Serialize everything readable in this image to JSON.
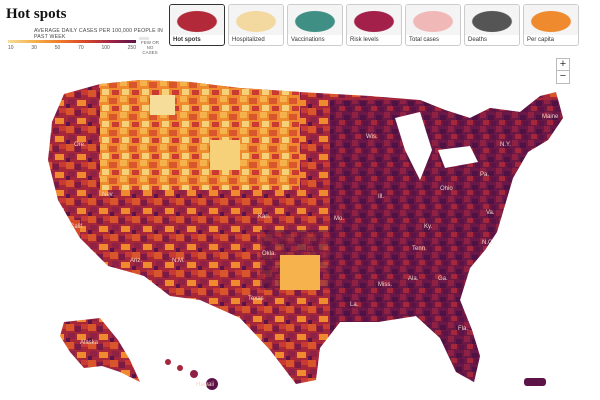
{
  "header": {
    "title": "Hot spots",
    "legend_caption": "Average daily cases per 100,000 people in past week",
    "legend_ticks": [
      "10",
      "30",
      "50",
      "70",
      "100",
      "250"
    ],
    "legend_few": "Few or no cases",
    "legend_colors": [
      "#f7dd9a",
      "#f6b24c",
      "#ef7b2b",
      "#d94a28",
      "#a32345",
      "#5c1448"
    ]
  },
  "tabs": [
    {
      "label": "Hot spots",
      "active": true,
      "icon": "hot-spots-thumb",
      "color": "#b22a3a"
    },
    {
      "label": "Hospitalized",
      "active": false,
      "icon": "hospitalized-thumb",
      "color": "#f3d9a0"
    },
    {
      "label": "Vaccinations",
      "active": false,
      "icon": "vaccinations-thumb",
      "color": "#3f8f84"
    },
    {
      "label": "Risk levels",
      "active": false,
      "icon": "risk-levels-thumb",
      "color": "#a3204a"
    },
    {
      "label": "Total cases",
      "active": false,
      "icon": "total-cases-thumb",
      "color": "#f1b8b8"
    },
    {
      "label": "Deaths",
      "active": false,
      "icon": "deaths-thumb",
      "color": "#555555"
    },
    {
      "label": "Per capita",
      "active": false,
      "icon": "per-capita-thumb",
      "color": "#ef8a2e"
    }
  ],
  "zoom": {
    "in_label": "+",
    "out_label": "−"
  },
  "map_labels": [
    "Maine",
    "Ore.",
    "Calif.",
    "Nev.",
    "Ariz.",
    "N.M.",
    "Texas",
    "Okla.",
    "Kan.",
    "Ill.",
    "Ohio",
    "Ga.",
    "Fla.",
    "Ala.",
    "Miss.",
    "La.",
    "Ky.",
    "Tenn.",
    "N.C.",
    "Va.",
    "Pa.",
    "N.Y.",
    "Wis.",
    "Mo.",
    "Alaska",
    "Hawaii"
  ]
}
